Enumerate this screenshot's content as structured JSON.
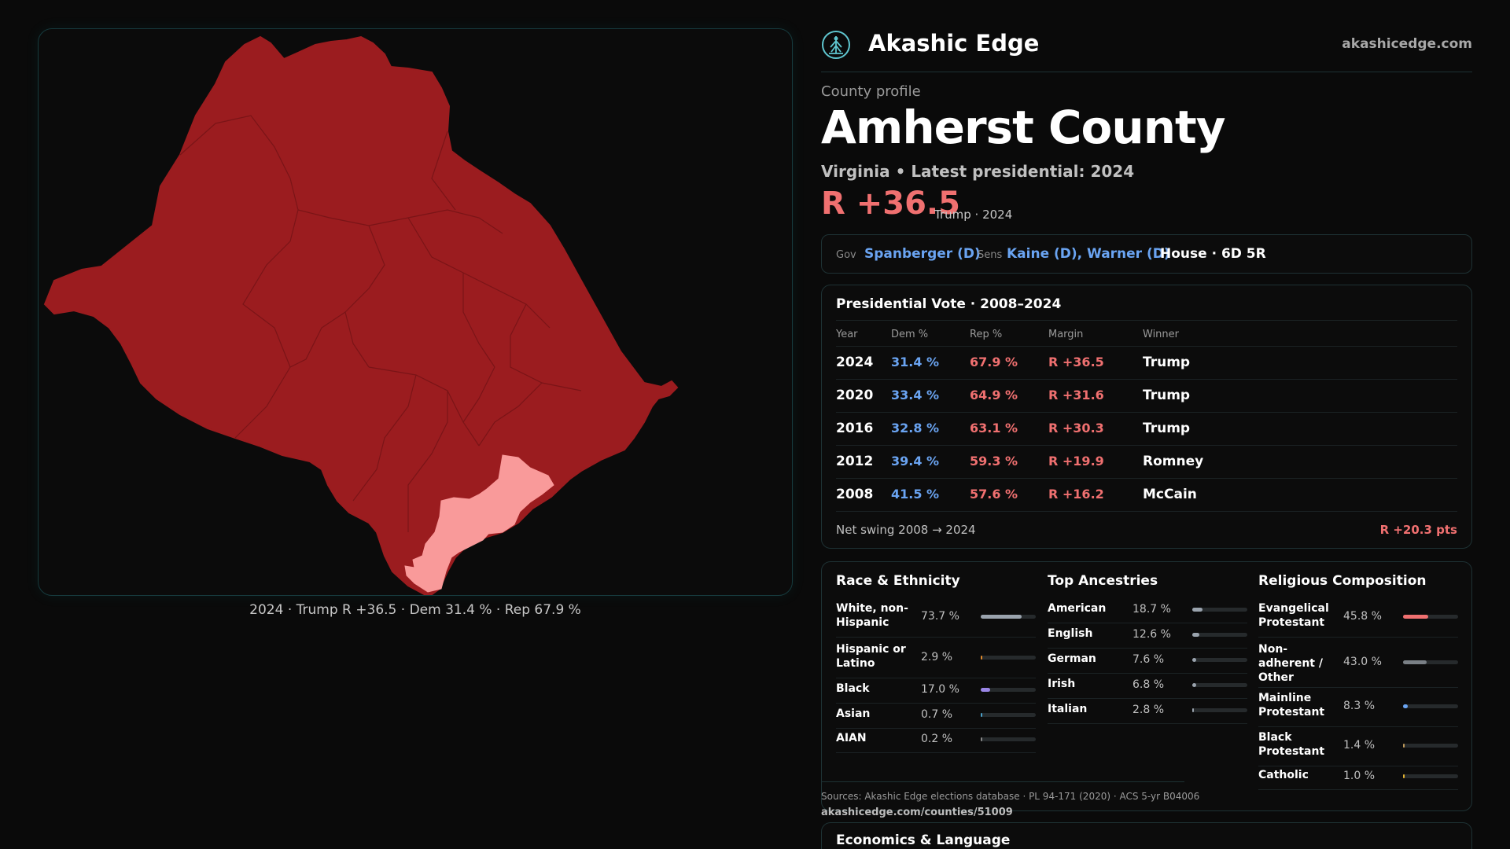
{
  "map": {
    "caption": "2024 · Trump R +36.5 · Dem 31.4 % · Rep 67.9 %",
    "colors": {
      "main": "#9b1c1f",
      "highlight": "#f99a9a",
      "border": "#7a1417"
    }
  },
  "header": {
    "brand": "Akashic Edge",
    "site": "akashicedge.com",
    "logo_icon": "akashic-tree-icon"
  },
  "profile": {
    "kicker": "County profile",
    "title": "Amherst County",
    "subtitle": "Virginia • Latest presidential: 2024",
    "margin": "R +36.5",
    "margin_sub": "Trump · 2024"
  },
  "reps": {
    "gov_label": "Gov",
    "gov": "Spanberger (D)",
    "sens_label": "Sens",
    "sens": "Kaine (D), Warner (D)",
    "house": "House · 6D 5R"
  },
  "presidential": {
    "title": "Presidential Vote · 2008–2024",
    "headers": {
      "year": "Year",
      "dem": "Dem %",
      "rep": "Rep %",
      "margin": "Margin",
      "winner": "Winner"
    },
    "rows": [
      {
        "year": "2024",
        "dem": "31.4 %",
        "rep": "67.9 %",
        "margin": "R +36.5",
        "winner": "Trump"
      },
      {
        "year": "2020",
        "dem": "33.4 %",
        "rep": "64.9 %",
        "margin": "R +31.6",
        "winner": "Trump"
      },
      {
        "year": "2016",
        "dem": "32.8 %",
        "rep": "63.1 %",
        "margin": "R +30.3",
        "winner": "Trump"
      },
      {
        "year": "2012",
        "dem": "39.4 %",
        "rep": "59.3 %",
        "margin": "R +19.9",
        "winner": "Romney"
      },
      {
        "year": "2008",
        "dem": "41.5 %",
        "rep": "57.6 %",
        "margin": "R +16.2",
        "winner": "McCain"
      }
    ],
    "swing_label": "Net swing 2008 → 2024",
    "swing_value": "R +20.3 pts"
  },
  "race": {
    "title": "Race & Ethnicity",
    "items": [
      {
        "label": "White, non-Hispanic",
        "value": "73.7 %",
        "pct": 73.7,
        "color": "#9aa3ad"
      },
      {
        "label": "Hispanic or Latino",
        "value": "2.9 %",
        "pct": 2.9,
        "color": "#e08a2c"
      },
      {
        "label": "Black",
        "value": "17.0 %",
        "pct": 17.0,
        "color": "#9a86e6"
      },
      {
        "label": "Asian",
        "value": "0.7 %",
        "pct": 0.7,
        "color": "#4aa0c8"
      },
      {
        "label": "AIAN",
        "value": "0.2 %",
        "pct": 0.2,
        "color": "#888888"
      }
    ]
  },
  "ancestry": {
    "title": "Top Ancestries",
    "items": [
      {
        "label": "American",
        "value": "18.7 %",
        "pct": 18.7,
        "color": "#9aa3ad"
      },
      {
        "label": "English",
        "value": "12.6 %",
        "pct": 12.6,
        "color": "#9aa3ad"
      },
      {
        "label": "German",
        "value": "7.6 %",
        "pct": 7.6,
        "color": "#9aa3ad"
      },
      {
        "label": "Irish",
        "value": "6.8 %",
        "pct": 6.8,
        "color": "#9aa3ad"
      },
      {
        "label": "Italian",
        "value": "2.8 %",
        "pct": 2.8,
        "color": "#9aa3ad"
      }
    ]
  },
  "religion": {
    "title": "Religious Composition",
    "items": [
      {
        "label": "Evangelical Protestant",
        "value": "45.8 %",
        "pct": 45.8,
        "color": "#f07070"
      },
      {
        "label": "Non-adherent / Other",
        "value": "43.0 %",
        "pct": 43.0,
        "color": "#7a8086"
      },
      {
        "label": "Mainline Protestant",
        "value": "8.3 %",
        "pct": 8.3,
        "color": "#6aa4f2"
      },
      {
        "label": "Black Protestant",
        "value": "1.4 %",
        "pct": 1.4,
        "color": "#c09a5a"
      },
      {
        "label": "Catholic",
        "value": "1.0 %",
        "pct": 1.0,
        "color": "#e0b030"
      }
    ]
  },
  "sources": {
    "text": "Sources: Akashic Edge elections database · PL 94-171 (2020) · ACS 5-yr B04006",
    "url": "akashicedge.com/counties/51009"
  },
  "econ": {
    "title": "Economics & Language"
  }
}
